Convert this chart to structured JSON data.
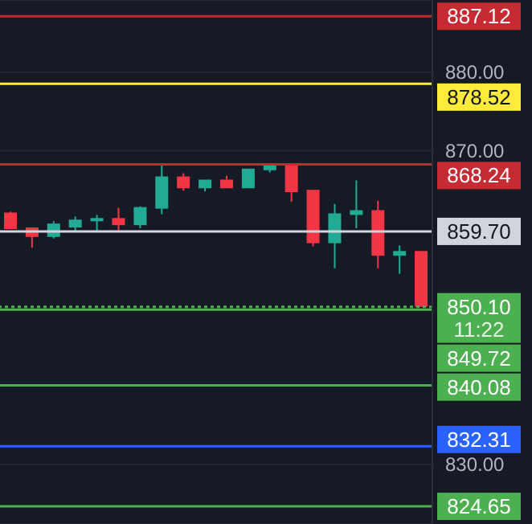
{
  "chart_data": {
    "type": "candlestick",
    "categories": [
      null,
      null,
      null,
      null,
      null,
      null,
      null,
      null,
      null,
      null,
      null,
      null,
      null,
      null,
      null,
      null,
      null,
      null,
      null,
      null
    ],
    "ohlc": [
      [
        862.0,
        862.2,
        860.1,
        860.1
      ],
      [
        860.1,
        860.2,
        857.6,
        859.1
      ],
      [
        859.1,
        861.0,
        858.8,
        860.6
      ],
      [
        860.3,
        861.6,
        859.6,
        861.1
      ],
      [
        861.1,
        861.8,
        859.8,
        861.3
      ],
      [
        861.3,
        862.7,
        859.8,
        860.6
      ],
      [
        860.6,
        862.9,
        860.1,
        862.7
      ],
      [
        862.7,
        868.1,
        861.9,
        866.6
      ],
      [
        866.6,
        867.1,
        864.9,
        865.3
      ],
      [
        865.3,
        866.2,
        864.8,
        866.2
      ],
      [
        866.2,
        866.8,
        865.3,
        865.3
      ],
      [
        865.3,
        867.6,
        865.3,
        867.6
      ],
      [
        867.6,
        868.4,
        867.2,
        868.1
      ],
      [
        868.1,
        868.1,
        863.5,
        864.8
      ],
      [
        864.9,
        864.9,
        857.8,
        858.3
      ],
      [
        858.3,
        863.2,
        855.0,
        861.9
      ],
      [
        861.9,
        866.2,
        860.1,
        862.3
      ],
      [
        862.3,
        863.6,
        855.0,
        856.7
      ],
      [
        856.7,
        857.9,
        854.3,
        857.1
      ],
      [
        857.1,
        857.1,
        850.1,
        850.2
      ]
    ],
    "colors": [
      "#f23645",
      "#f23645",
      "#22ab94",
      "#22ab94",
      "#22ab94",
      "#f23645",
      "#22ab94",
      "#22ab94",
      "#f23645",
      "#22ab94",
      "#f23645",
      "#22ab94",
      "#22ab94",
      "#f23645",
      "#f23645",
      "#22ab94",
      "#22ab94",
      "#f23645",
      "#22ab94",
      "#f23645"
    ],
    "ylim": [
      822.4,
      889.2
    ],
    "yticks": [
      {
        "value": 830,
        "label": "830.00"
      },
      {
        "value": 870,
        "label": "870.00"
      },
      {
        "value": 880,
        "label": "880.00"
      }
    ],
    "tick_labels": "y",
    "grid": "y",
    "ref_lines": [
      {
        "axis": "y",
        "value": 887.12,
        "label": "887.12",
        "color": "#c62a33"
      },
      {
        "axis": "y",
        "value": 878.52,
        "label": "878.52",
        "color": "#ffeb3b"
      },
      {
        "axis": "y",
        "value": 868.24,
        "label": "868.24",
        "color": "#c62a33"
      },
      {
        "axis": "y",
        "value": 859.7,
        "label": "859.70",
        "color": "#d1d4dc"
      },
      {
        "axis": "y",
        "value": 850.1,
        "label": "850.10",
        "color": "#4caf50",
        "line_style": "dotted"
      },
      {
        "axis": "y",
        "value": 849.72,
        "label": "849.72",
        "color": "#4caf50"
      },
      {
        "axis": "y",
        "value": 840.08,
        "label": "840.08",
        "color": "#4caf50"
      },
      {
        "axis": "y",
        "value": 832.31,
        "label": "832.31",
        "color": "#2962ff"
      },
      {
        "axis": "y",
        "value": 824.65,
        "label": "824.65",
        "color": "#4caf50"
      }
    ],
    "annotations": [
      "11:22"
    ]
  }
}
